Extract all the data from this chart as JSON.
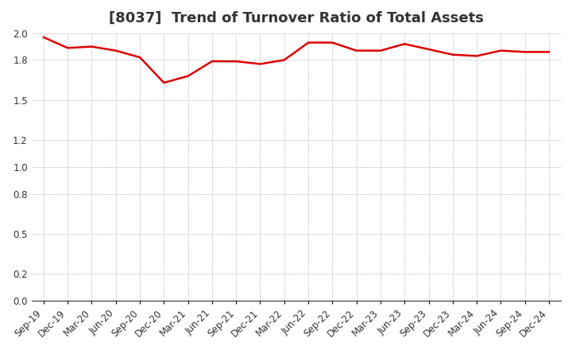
{
  "title": "[8037]  Trend of Turnover Ratio of Total Assets",
  "x_labels": [
    "Sep-19",
    "Dec-19",
    "Mar-20",
    "Jun-20",
    "Sep-20",
    "Dec-20",
    "Mar-21",
    "Jun-21",
    "Sep-21",
    "Dec-21",
    "Mar-22",
    "Jun-22",
    "Sep-22",
    "Dec-22",
    "Mar-23",
    "Jun-23",
    "Sep-23",
    "Dec-23",
    "Mar-24",
    "Jun-24",
    "Sep-24",
    "Dec-24"
  ],
  "y_values": [
    1.97,
    1.89,
    1.9,
    1.87,
    1.82,
    1.63,
    1.68,
    1.79,
    1.79,
    1.77,
    1.8,
    1.93,
    1.93,
    1.87,
    1.87,
    1.92,
    1.88,
    1.84,
    1.83,
    1.87,
    1.86,
    1.86
  ],
  "line_color": "#dd0000",
  "line_width": 1.8,
  "ylim": [
    0.0,
    2.0
  ],
  "yticks": [
    0.0,
    0.2,
    0.5,
    0.8,
    1.0,
    1.2,
    1.5,
    1.8,
    2.0
  ],
  "background_color": "#ffffff",
  "grid_color": "#999999",
  "title_fontsize": 13,
  "tick_fontsize": 8.5,
  "title_color": "#333333"
}
